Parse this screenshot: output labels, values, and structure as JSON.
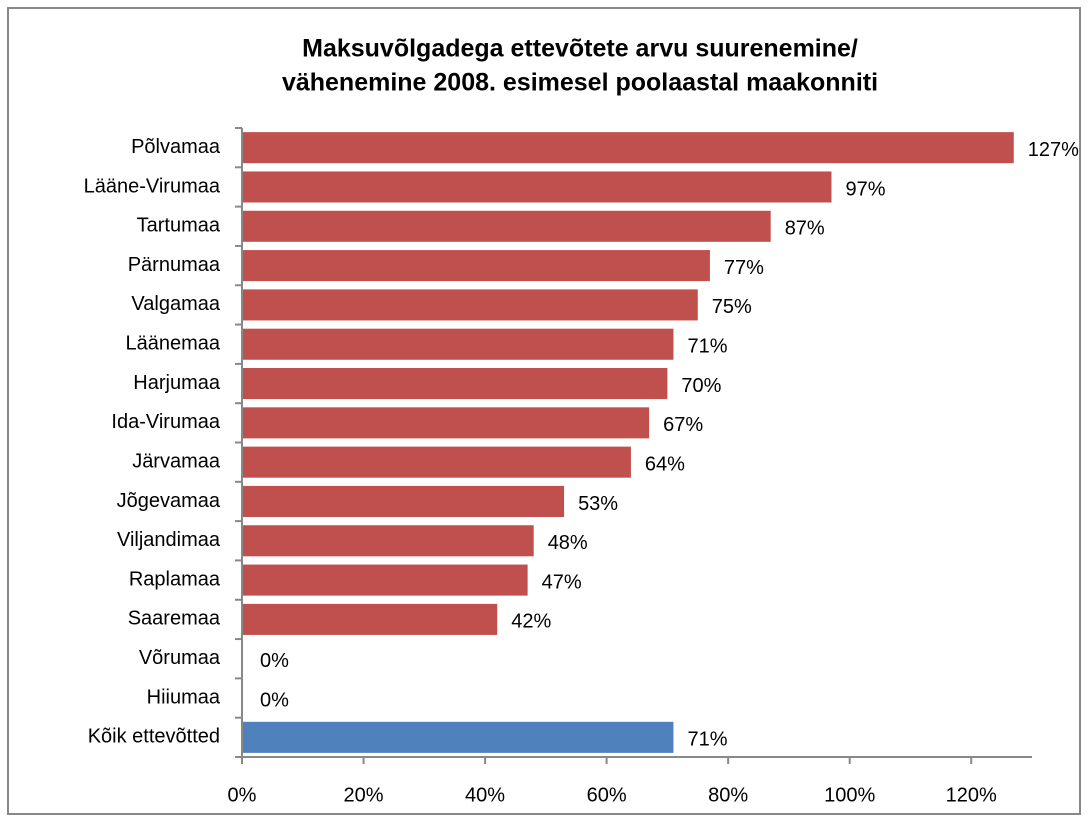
{
  "chart_data": {
    "type": "bar",
    "orientation": "horizontal",
    "title": [
      "Maksuvõlgadega ettevõtete arvu suurenemine/",
      "vähenemine 2008. esimesel poolaastal maakonniti"
    ],
    "categories": [
      "Põlvamaa",
      "Lääne-Virumaa",
      "Tartumaa",
      "Pärnumaa",
      "Valgamaa",
      "Läänemaa",
      "Harjumaa",
      "Ida-Virumaa",
      "Järvamaa",
      "Jõgevamaa",
      "Viljandimaa",
      "Raplamaa",
      "Saaremaa",
      "Võrumaa",
      "Hiiumaa",
      "Kõik ettevõtted"
    ],
    "values": [
      127,
      97,
      87,
      77,
      75,
      71,
      70,
      67,
      64,
      53,
      48,
      47,
      42,
      0,
      0,
      71
    ],
    "value_labels": [
      "127%",
      "97%",
      "87%",
      "77%",
      "75%",
      "71%",
      "70%",
      "67%",
      "64%",
      "53%",
      "48%",
      "47%",
      "42%",
      "0%",
      "0%",
      "71%"
    ],
    "colors": [
      "#c0504d",
      "#c0504d",
      "#c0504d",
      "#c0504d",
      "#c0504d",
      "#c0504d",
      "#c0504d",
      "#c0504d",
      "#c0504d",
      "#c0504d",
      "#c0504d",
      "#c0504d",
      "#c0504d",
      "#c0504d",
      "#c0504d",
      "#4f81bd"
    ],
    "xlim": [
      0,
      130
    ],
    "xticks": [
      {
        "value": 0,
        "label": "0%"
      },
      {
        "value": 20,
        "label": "20%"
      },
      {
        "value": 40,
        "label": "40%"
      },
      {
        "value": 60,
        "label": "60%"
      },
      {
        "value": 80,
        "label": "80%"
      },
      {
        "value": 100,
        "label": "100%"
      },
      {
        "value": 120,
        "label": "120%"
      }
    ],
    "grid": false
  }
}
